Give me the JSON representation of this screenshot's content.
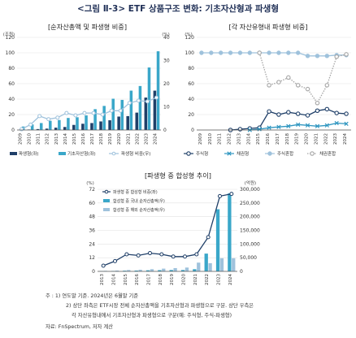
{
  "figure_title": "<그림 Ⅱ-3> ETF 상품구조 변화: 기초자산형과 파생형",
  "chart_data": [
    {
      "type": "bar",
      "title": "[순자산총액 및 파생형 비중]",
      "left_unit": "(조원)",
      "right_unit": "(%)",
      "categories": [
        "2009",
        "2010",
        "2011",
        "2012",
        "2013",
        "2014",
        "2015",
        "2016",
        "2017",
        "2018",
        "2019",
        "2020",
        "2021",
        "2022",
        "2023",
        "2024"
      ],
      "series": [
        {
          "name": "파생형(좌)",
          "kind": "bar",
          "axis": "right",
          "color": "#1f3f68",
          "values": [
            0.1,
            0.2,
            0.4,
            0.6,
            1.0,
            1.3,
            2.2,
            2.7,
            3.0,
            3.7,
            4.2,
            5.8,
            6.0,
            7.5,
            14.0,
            17.0
          ]
        },
        {
          "name": "기초자산형(좌)",
          "kind": "bar",
          "axis": "right",
          "color": "#3aa7c9",
          "values": [
            1.5,
            2.4,
            3.0,
            4.0,
            4.3,
            5.2,
            5.5,
            6.3,
            9.0,
            10.4,
            13.5,
            13.0,
            17.0,
            19.0,
            27.0,
            34.0
          ]
        },
        {
          "name": "파생형 비중(우)",
          "kind": "line",
          "axis": "left",
          "color": "#9fc2dc",
          "values": [
            1,
            7,
            18,
            14,
            16,
            22,
            19,
            22,
            22,
            20,
            25,
            25,
            35,
            38,
            37,
            42
          ]
        }
      ],
      "ylim_left": [
        0,
        120
      ],
      "yticks_left": [
        0,
        20,
        40,
        60,
        80,
        100,
        120
      ],
      "ylim_right": [
        0,
        40
      ],
      "yticks_right": [
        0,
        10,
        20,
        30,
        40
      ]
    },
    {
      "type": "line",
      "title": "[각 자산유형내 파생형 비중]",
      "unit": "(%)",
      "categories": [
        "2009",
        "2010",
        "2011",
        "2012",
        "2013",
        "2014",
        "2015",
        "2016",
        "2017",
        "2018",
        "2019",
        "2020",
        "2021",
        "2022",
        "2023",
        "2024"
      ],
      "series": [
        {
          "name": "주식형",
          "color": "#1f3f68",
          "style": "solid",
          "marker": "circle-open",
          "values": [
            null,
            null,
            null,
            0,
            1,
            2,
            3,
            24,
            20,
            23,
            21,
            19,
            25,
            27,
            22,
            21
          ]
        },
        {
          "name": "채권형",
          "color": "#2f96c0",
          "style": "solid",
          "marker": "x",
          "values": [
            null,
            null,
            null,
            null,
            null,
            0,
            1,
            3,
            4,
            5,
            7,
            6,
            5,
            6,
            9,
            8
          ]
        },
        {
          "name": "주식혼합",
          "color": "#9fc2dc",
          "style": "solid",
          "marker": "circle-filled",
          "values": [
            100,
            100,
            100,
            100,
            100,
            100,
            100,
            100,
            100,
            100,
            100,
            96,
            96,
            96,
            97,
            97
          ]
        },
        {
          "name": "채권혼합",
          "color": "#a5a5a5",
          "style": "dotted",
          "marker": "circle-open",
          "values": [
            null,
            null,
            null,
            null,
            null,
            null,
            100,
            58,
            62,
            68,
            58,
            53,
            35,
            58,
            95,
            98
          ]
        }
      ],
      "ylim": [
        0,
        120
      ],
      "yticks": [
        0,
        20,
        40,
        60,
        80,
        100,
        120
      ]
    },
    {
      "type": "bar",
      "title": "[파생형 중 합성형 추이]",
      "left_unit": "(%)",
      "right_unit": "(억원)",
      "categories": [
        "2013",
        "2014",
        "2015",
        "2016",
        "2017",
        "2018",
        "2019",
        "2020",
        "2021",
        "2022",
        "2023",
        "2024"
      ],
      "series": [
        {
          "name": "파생형 중 합성형 비중(좌)",
          "kind": "line",
          "axis": "left",
          "color": "#1f3f68",
          "values": [
            5,
            9,
            15,
            14,
            16,
            15,
            13,
            13,
            15,
            30,
            66,
            68
          ]
        },
        {
          "name": "합성형 중 국내 순자산총액(우)",
          "kind": "bar",
          "axis": "right",
          "color": "#3aa7c9",
          "values": [
            1000,
            1500,
            2500,
            3000,
            4000,
            4500,
            5000,
            5000,
            8000,
            65000,
            227000,
            285000
          ]
        },
        {
          "name": "합성형 중 해외 순자산총액(우)",
          "kind": "bar",
          "axis": "right",
          "color": "#9fc2dc",
          "values": [
            2000,
            3000,
            5000,
            6000,
            8000,
            10000,
            12000,
            14000,
            32000,
            30000,
            48000,
            48000
          ]
        }
      ],
      "ylim_left": [
        0,
        72
      ],
      "yticks_left": [
        0,
        12,
        24,
        36,
        48,
        60,
        72
      ],
      "ylim_right": [
        0,
        300000
      ],
      "yticks_right": [
        "0",
        "50,000",
        "100,000",
        "150,000",
        "200,000",
        "250,000",
        "300,000"
      ]
    }
  ],
  "notes": {
    "line1": "주    : 1) 연도말 기준. 2024년은 6월말 기준",
    "line2": "2) 상단 좌측은 ETF시장 전체 순자산총액을 기초자산형과 파생형으로 구분. 상단 우측은",
    "line3": "각 자산유형내에서 기초자산형과 파생형으로 구분(예: 주식형, 주식-파생형)",
    "line4": "자료: FnSpectrum, 저자 계산"
  }
}
